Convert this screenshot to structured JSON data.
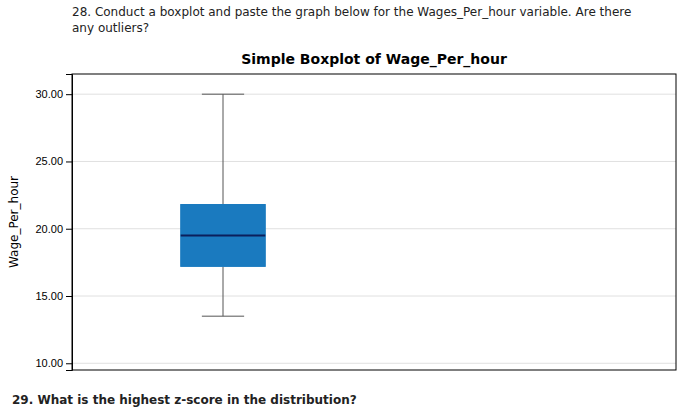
{
  "chart_data": {
    "type": "box",
    "title": "Simple Boxplot of Wage_Per_hour",
    "ylabel": "Wage_Per_hour",
    "annotations": [
      "28. Conduct a boxplot and paste the graph below for the Wages_Per_hour variable. Are there",
      "any outliers?",
      "29. What is the highest z-score in the distribution?"
    ],
    "stats": {
      "whislo": 13.5,
      "q1": 17.2,
      "med": 19.5,
      "q3": 21.8,
      "whishi": 30.0
    },
    "color": "#1a7abf",
    "ylim": [
      9.5,
      31.5
    ],
    "yticks": [
      {
        "value": 10.0,
        "label": "10.00"
      },
      {
        "value": 15.0,
        "label": "15.00"
      },
      {
        "value": 20.0,
        "label": "20.00"
      },
      {
        "value": 25.0,
        "label": "25.00"
      },
      {
        "value": 30.0,
        "label": "30.00"
      }
    ],
    "grid": true,
    "tick_labels": "y"
  }
}
